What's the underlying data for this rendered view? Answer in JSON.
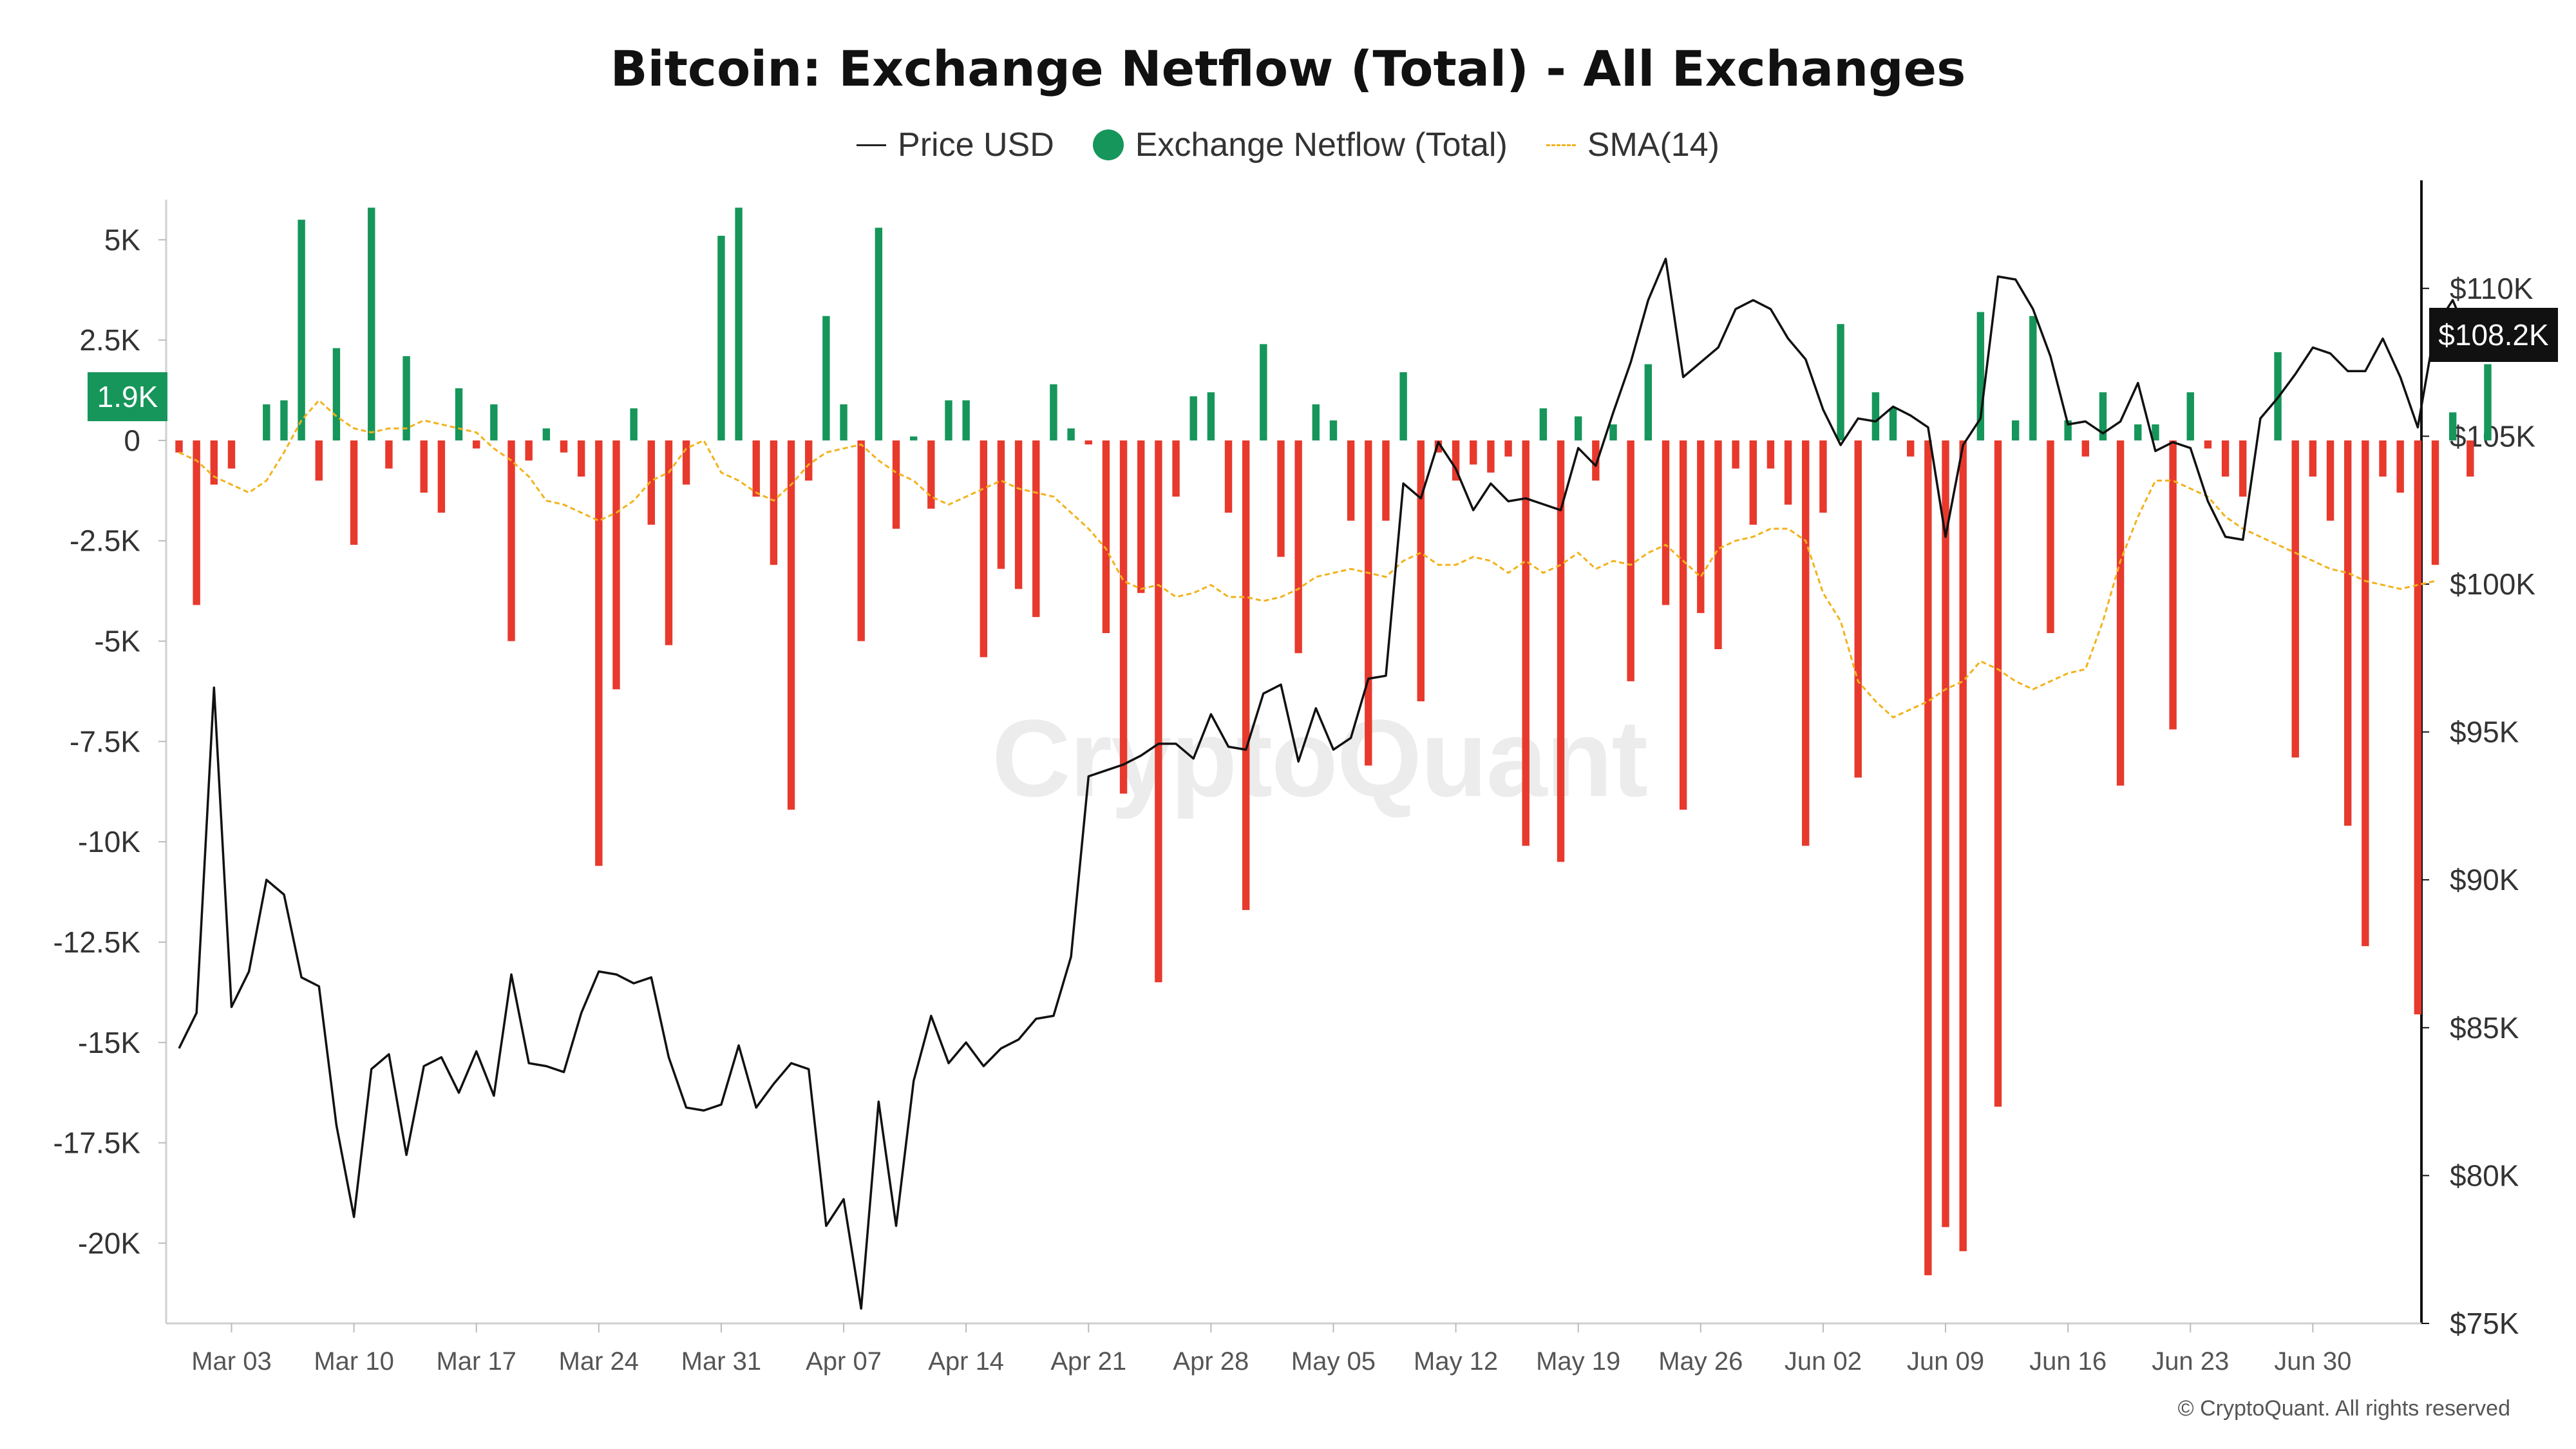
{
  "title": "Bitcoin: Exchange Netflow (Total) - All Exchanges",
  "legend": [
    {
      "label": "Price USD",
      "icon": "line-icon",
      "color": "#222222"
    },
    {
      "label": "Exchange Netflow (Total)",
      "icon": "dot-icon",
      "color": "#16965a"
    },
    {
      "label": "SMA(14)",
      "icon": "dashed-line-icon",
      "color": "#f2b21b"
    }
  ],
  "watermark": "CryptoQuant",
  "copyright": "© CryptoQuant. All rights reserved",
  "badges": {
    "netflow_current": "1.9K",
    "price_current": "$108.2K"
  },
  "colors": {
    "positive": "#16965a",
    "negative": "#e8392d",
    "price": "#111111",
    "sma": "#f2b21b"
  },
  "chart_data": {
    "type": "bar",
    "title": "Bitcoin: Exchange Netflow (Total) - All Exchanges",
    "x_start": "2025-02-28",
    "x_end": "2025-07-04",
    "x_tick_labels": [
      "Mar 03",
      "Mar 10",
      "Mar 17",
      "Mar 24",
      "Mar 31",
      "Apr 07",
      "Apr 14",
      "Apr 21",
      "Apr 28",
      "May 05",
      "May 12",
      "May 19",
      "May 26",
      "Jun 02",
      "Jun 09",
      "Jun 16",
      "Jun 23",
      "Jun 30"
    ],
    "left_axis": {
      "ticks": [
        "5K",
        "2.5K",
        "0",
        "-2.5K",
        "-5K",
        "-7.5K",
        "-10K",
        "-12.5K",
        "-15K",
        "-17.5K",
        "-20K"
      ],
      "ylim": [
        -22000,
        6000
      ]
    },
    "right_axis": {
      "ticks": [
        "$110K",
        "$105K",
        "$100K",
        "$95K",
        "$90K",
        "$85K",
        "$80K",
        "$75K"
      ],
      "ylim": [
        75000,
        113000
      ]
    },
    "series": [
      {
        "name": "Exchange Netflow (Total)",
        "axis": "left",
        "values": [
          -300,
          -4100,
          -1100,
          -700,
          0,
          900,
          1000,
          5500,
          -1000,
          2300,
          -2600,
          5800,
          -700,
          2100,
          -1300,
          -1800,
          1300,
          -200,
          900,
          -5000,
          -500,
          300,
          -300,
          -900,
          -10600,
          -6200,
          800,
          -2100,
          -5100,
          -1100,
          0,
          5100,
          5800,
          -1400,
          -3100,
          -9200,
          -1000,
          3100,
          900,
          -5000,
          5300,
          -2200,
          100,
          -1700,
          1000,
          1000,
          -5400,
          -3200,
          -3700,
          -4400,
          1400,
          300,
          -100,
          -4800,
          -8800,
          -3800,
          -13500,
          -1400,
          1100,
          1200,
          -1800,
          -11700,
          2400,
          -2900,
          -5300,
          900,
          500,
          -2000,
          -8100,
          -2000,
          1700,
          -6500,
          -300,
          -1000,
          -600,
          -800,
          -400,
          -10100,
          800,
          -10500,
          600,
          -1000,
          400,
          -6000,
          1900,
          -4100,
          -9200,
          -4300,
          -5200,
          -700,
          -2100,
          -700,
          -1600,
          -10100,
          -1800,
          2900,
          -8400,
          1200,
          800,
          -400,
          -20800,
          -19600,
          -20200,
          3200,
          -16600,
          500,
          3100,
          -4800,
          500,
          -400,
          1200,
          -8600,
          400,
          400,
          -7200,
          1200,
          -200,
          -900,
          -1400,
          0,
          2200,
          -7900,
          -900,
          -2000,
          -9600,
          -12600,
          -900,
          -1300,
          -14300,
          -3100,
          700,
          -900,
          1900
        ]
      },
      {
        "name": "Price USD",
        "axis": "right",
        "values": [
          84300,
          85500,
          96500,
          85700,
          86900,
          90000,
          89500,
          86700,
          86400,
          81700,
          78600,
          83600,
          84100,
          80700,
          83700,
          84000,
          82800,
          84200,
          82700,
          86800,
          83800,
          83700,
          83500,
          85500,
          86900,
          86800,
          86500,
          86700,
          84000,
          82300,
          82200,
          82400,
          84400,
          82300,
          83100,
          83800,
          83600,
          78300,
          79200,
          75500,
          82500,
          78300,
          83200,
          85400,
          83800,
          84500,
          83700,
          84300,
          84600,
          85300,
          85400,
          87400,
          93500,
          93700,
          93900,
          94200,
          94600,
          94600,
          94100,
          95600,
          94500,
          94400,
          96300,
          96600,
          94000,
          95800,
          94400,
          94800,
          96800,
          96900,
          103400,
          102900,
          104800,
          103900,
          102500,
          103400,
          102800,
          102900,
          102700,
          102500,
          104600,
          104000,
          105800,
          107500,
          109600,
          111000,
          107000,
          107500,
          108000,
          109300,
          109600,
          109300,
          108300,
          107600,
          105900,
          104700,
          105600,
          105500,
          106000,
          105700,
          105300,
          101600,
          104700,
          105600,
          110400,
          110300,
          109300,
          107700,
          105400,
          105500,
          105100,
          105500,
          106800,
          104500,
          104800,
          104600,
          102800,
          101600,
          101500,
          105600,
          106300,
          107100,
          108000,
          107800,
          107200,
          107200,
          108300,
          107000,
          105300,
          108700,
          109600,
          108200
        ]
      },
      {
        "name": "SMA(14)",
        "axis": "left",
        "values": [
          -300,
          -500,
          -900,
          -1100,
          -1300,
          -1000,
          -300,
          500,
          1000,
          600,
          300,
          200,
          300,
          300,
          500,
          400,
          300,
          200,
          -200,
          -500,
          -900,
          -1500,
          -1600,
          -1800,
          -2000,
          -1800,
          -1500,
          -1000,
          -800,
          -200,
          0,
          -800,
          -1000,
          -1300,
          -1500,
          -1100,
          -600,
          -300,
          -200,
          -100,
          -500,
          -800,
          -1000,
          -1400,
          -1600,
          -1400,
          -1200,
          -1000,
          -1200,
          -1300,
          -1400,
          -1800,
          -2200,
          -2700,
          -3500,
          -3700,
          -3600,
          -3900,
          -3800,
          -3600,
          -3900,
          -3900,
          -4000,
          -3900,
          -3700,
          -3400,
          -3300,
          -3200,
          -3300,
          -3400,
          -3000,
          -2800,
          -3100,
          -3100,
          -2900,
          -3000,
          -3300,
          -3000,
          -3300,
          -3100,
          -2800,
          -3200,
          -3000,
          -3100,
          -2800,
          -2600,
          -3000,
          -3400,
          -2700,
          -2500,
          -2400,
          -2200,
          -2200,
          -2500,
          -3800,
          -4500,
          -6000,
          -6500,
          -6900,
          -6700,
          -6500,
          -6200,
          -6000,
          -5500,
          -5700,
          -6000,
          -6200,
          -6000,
          -5800,
          -5700,
          -4500,
          -3000,
          -1900,
          -1000,
          -1000,
          -1200,
          -1400,
          -1900,
          -2200,
          -2400,
          -2600,
          -2800,
          -3000,
          -3200,
          -3300,
          -3500,
          -3600,
          -3700,
          -3600,
          -3500
        ]
      }
    ]
  }
}
